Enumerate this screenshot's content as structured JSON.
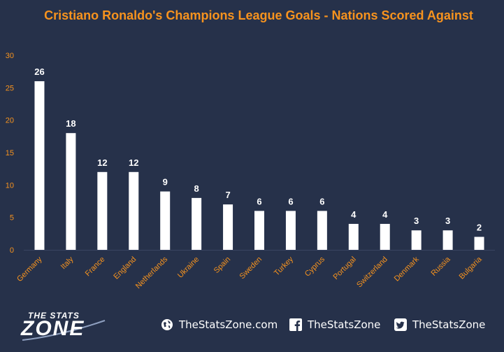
{
  "chart_data": {
    "type": "bar",
    "title": "Cristiano Ronaldo's Champions League Goals - Nations Scored Against",
    "xlabel": "",
    "ylabel": "",
    "ylim": [
      0,
      30
    ],
    "yticks": [
      0,
      5,
      10,
      15,
      20,
      25,
      30
    ],
    "grid": false,
    "categories": [
      "Germany",
      "Italy",
      "France",
      "England",
      "Netherlands",
      "Ukraine",
      "Spain",
      "Sweden",
      "Turkey",
      "Cyprus",
      "Portugal",
      "Switzerland",
      "Denmark",
      "Russia",
      "Bulgaria"
    ],
    "values": [
      26,
      18,
      12,
      12,
      9,
      8,
      7,
      6,
      6,
      6,
      4,
      4,
      3,
      3,
      2
    ],
    "bar_color": "#ffffff",
    "label_color": "#f7931e",
    "title_color": "#f7931e",
    "background": "#26314a"
  },
  "footer": {
    "logo_top": "THE STATS",
    "logo_bottom": "ZONE",
    "website": "TheStatsZone.com",
    "facebook": "TheStatsZone",
    "twitter": "TheStatsZone",
    "icons": [
      "globe-icon",
      "facebook-icon",
      "twitter-icon"
    ]
  }
}
